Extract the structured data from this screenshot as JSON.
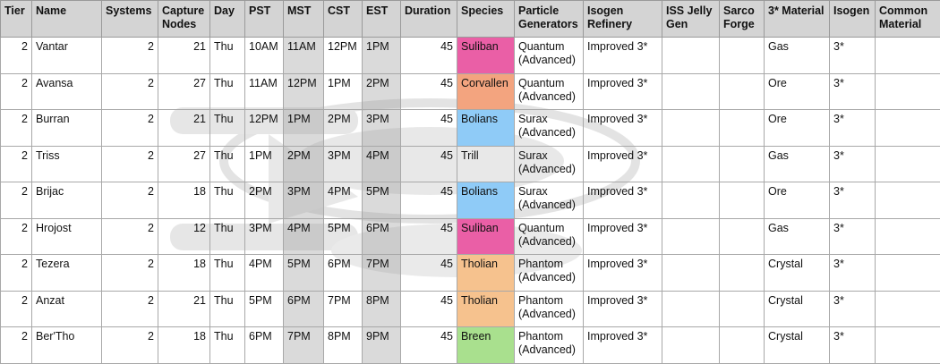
{
  "table": {
    "headers": [
      "Tier",
      "Name",
      "Systems",
      "Capture Nodes",
      "Day",
      "PST",
      "MST",
      "CST",
      "EST",
      "Duration",
      "Species",
      "Particle Generators",
      "Isogen Refinery",
      "ISS Jelly Gen",
      "Sarco Forge",
      "3* Material",
      "Isogen",
      "Common Material"
    ],
    "rows": [
      {
        "tier": "2",
        "name": "Vantar",
        "systems": "2",
        "capture_nodes": "21",
        "day": "Thu",
        "pst": "10AM",
        "mst": "11AM",
        "cst": "12PM",
        "est": "1PM",
        "duration": "45",
        "species": "Suliban",
        "species_key": "suliban",
        "particle_gen": "Quantum (Advanced)",
        "isogen_refinery": "Improved 3*",
        "iss_jelly": "",
        "sarco": "",
        "material": "Gas",
        "isogen": "3*",
        "common": ""
      },
      {
        "tier": "2",
        "name": "Avansa",
        "systems": "2",
        "capture_nodes": "27",
        "day": "Thu",
        "pst": "11AM",
        "mst": "12PM",
        "cst": "1PM",
        "est": "2PM",
        "duration": "45",
        "species": "Corvallen",
        "species_key": "corvallen",
        "particle_gen": "Quantum (Advanced)",
        "isogen_refinery": "Improved 3*",
        "iss_jelly": "",
        "sarco": "",
        "material": "Ore",
        "isogen": "3*",
        "common": ""
      },
      {
        "tier": "2",
        "name": "Burran",
        "systems": "2",
        "capture_nodes": "21",
        "day": "Thu",
        "pst": "12PM",
        "mst": "1PM",
        "cst": "2PM",
        "est": "3PM",
        "duration": "45",
        "species": "Bolians",
        "species_key": "bolians",
        "particle_gen": "Surax (Advanced)",
        "isogen_refinery": "Improved 3*",
        "iss_jelly": "",
        "sarco": "",
        "material": "Ore",
        "isogen": "3*",
        "common": ""
      },
      {
        "tier": "2",
        "name": "Triss",
        "systems": "2",
        "capture_nodes": "27",
        "day": "Thu",
        "pst": "1PM",
        "mst": "2PM",
        "cst": "3PM",
        "est": "4PM",
        "duration": "45",
        "species": "Trill",
        "species_key": "trill",
        "particle_gen": "Surax (Advanced)",
        "isogen_refinery": "Improved 3*",
        "iss_jelly": "",
        "sarco": "",
        "material": "Gas",
        "isogen": "3*",
        "common": ""
      },
      {
        "tier": "2",
        "name": "Brijac",
        "systems": "2",
        "capture_nodes": "18",
        "day": "Thu",
        "pst": "2PM",
        "mst": "3PM",
        "cst": "4PM",
        "est": "5PM",
        "duration": "45",
        "species": "Bolians",
        "species_key": "bolians",
        "particle_gen": "Surax (Advanced)",
        "isogen_refinery": "Improved 3*",
        "iss_jelly": "",
        "sarco": "",
        "material": "Ore",
        "isogen": "3*",
        "common": ""
      },
      {
        "tier": "2",
        "name": "Hrojost",
        "systems": "2",
        "capture_nodes": "12",
        "day": "Thu",
        "pst": "3PM",
        "mst": "4PM",
        "cst": "5PM",
        "est": "6PM",
        "duration": "45",
        "species": "Suliban",
        "species_key": "suliban",
        "particle_gen": "Quantum (Advanced)",
        "isogen_refinery": "Improved 3*",
        "iss_jelly": "",
        "sarco": "",
        "material": "Gas",
        "isogen": "3*",
        "common": ""
      },
      {
        "tier": "2",
        "name": "Tezera",
        "systems": "2",
        "capture_nodes": "18",
        "day": "Thu",
        "pst": "4PM",
        "mst": "5PM",
        "cst": "6PM",
        "est": "7PM",
        "duration": "45",
        "species": "Tholian",
        "species_key": "tholian",
        "particle_gen": "Phantom (Advanced)",
        "isogen_refinery": "Improved 3*",
        "iss_jelly": "",
        "sarco": "",
        "material": "Crystal",
        "isogen": "3*",
        "common": ""
      },
      {
        "tier": "2",
        "name": "Anzat",
        "systems": "2",
        "capture_nodes": "21",
        "day": "Thu",
        "pst": "5PM",
        "mst": "6PM",
        "cst": "7PM",
        "est": "8PM",
        "duration": "45",
        "species": "Tholian",
        "species_key": "tholian",
        "particle_gen": "Phantom (Advanced)",
        "isogen_refinery": "Improved 3*",
        "iss_jelly": "",
        "sarco": "",
        "material": "Crystal",
        "isogen": "3*",
        "common": ""
      },
      {
        "tier": "2",
        "name": "Ber'Tho",
        "systems": "2",
        "capture_nodes": "18",
        "day": "Thu",
        "pst": "6PM",
        "mst": "7PM",
        "cst": "8PM",
        "est": "9PM",
        "duration": "45",
        "species": "Breen",
        "species_key": "breen",
        "particle_gen": "Phantom (Advanced)",
        "isogen_refinery": "Improved 3*",
        "iss_jelly": "",
        "sarco": "",
        "material": "Crystal",
        "isogen": "3*",
        "common": ""
      }
    ]
  },
  "colors": {
    "header_bg": "#d4d4d4",
    "time_column_shade": "#b8b8b8",
    "suliban": "#ea5fa6",
    "corvallen": "#f3a47f",
    "bolians": "#8fcbf7",
    "tholian": "#f6c28e",
    "breen": "#a9e08e"
  },
  "watermark": {
    "icon": "starship-watermark-icon",
    "text": ""
  }
}
